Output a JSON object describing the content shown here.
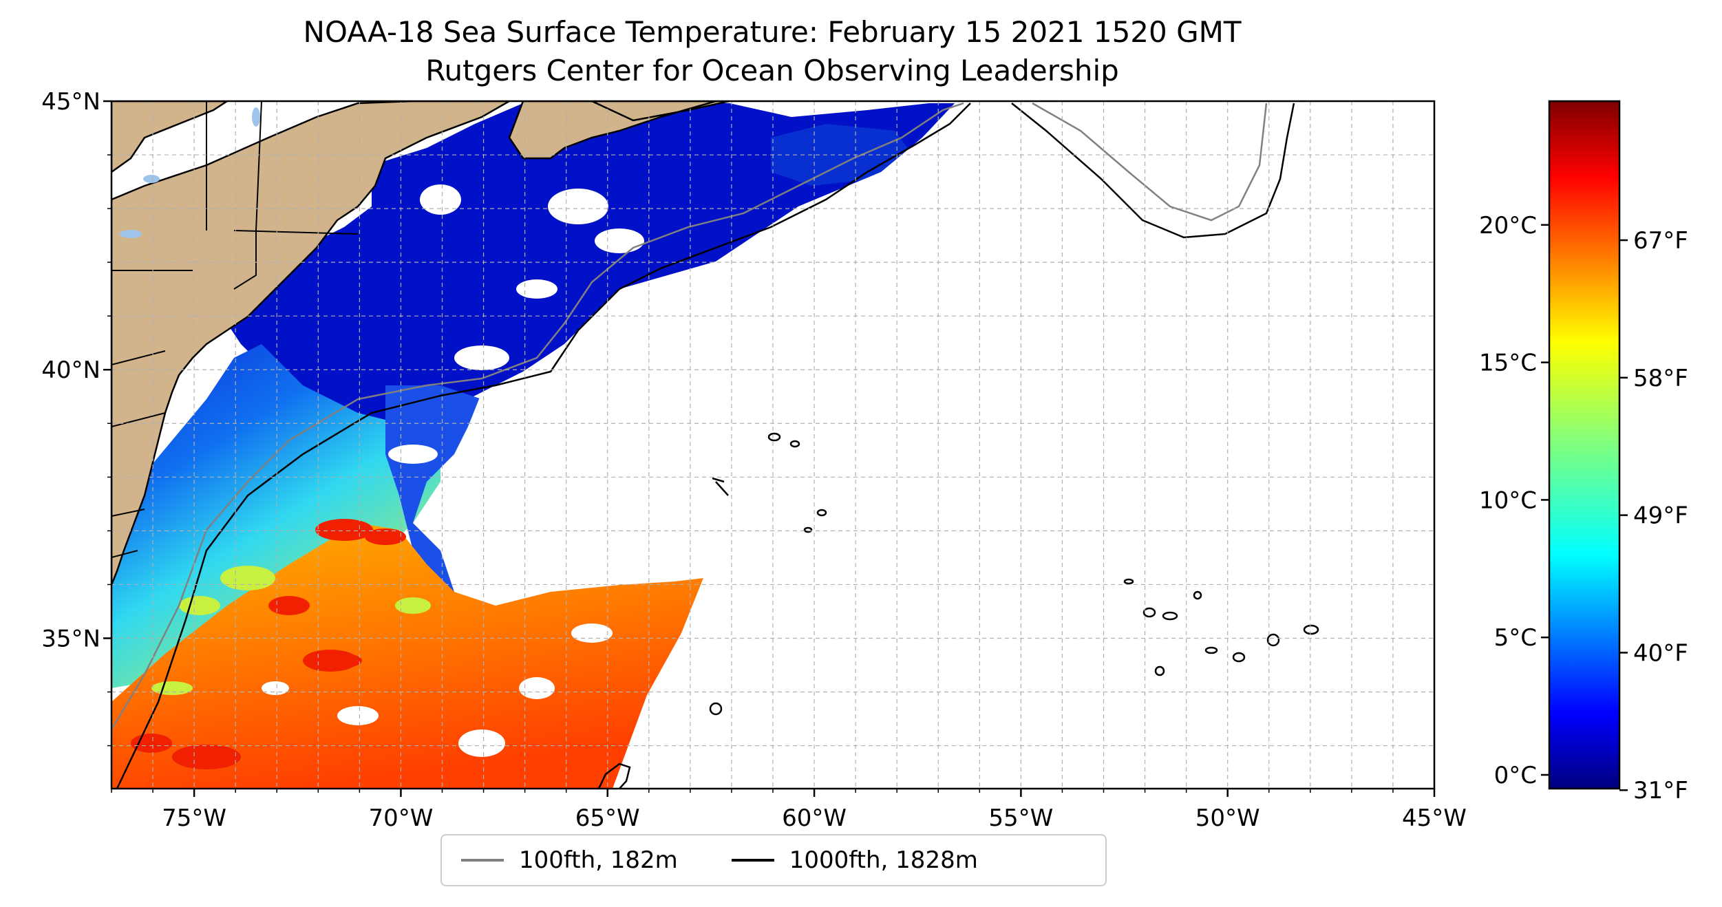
{
  "title": {
    "line1": "NOAA-18 Sea Surface Temperature: February 15 2021 1520 GMT",
    "line2": "Rutgers Center for Ocean Observing Leadership"
  },
  "map": {
    "lon_range": [
      -77,
      -45
    ],
    "lat_range": [
      32.2,
      45
    ],
    "lon_ticks": [
      {
        "value": -75,
        "label": "75°W"
      },
      {
        "value": -70,
        "label": "70°W"
      },
      {
        "value": -65,
        "label": "65°W"
      },
      {
        "value": -60,
        "label": "60°W"
      },
      {
        "value": -55,
        "label": "55°W"
      },
      {
        "value": -50,
        "label": "50°W"
      },
      {
        "value": -45,
        "label": "45°W"
      }
    ],
    "lat_ticks": [
      {
        "value": 45,
        "label": "45°N"
      },
      {
        "value": 40,
        "label": "40°N"
      },
      {
        "value": 35,
        "label": "35°N"
      }
    ],
    "grid": true,
    "colors": {
      "land": "#d2b48c",
      "lakes": "#9ec4ec",
      "isobath_100": "#808080",
      "isobath_1000": "#000000"
    }
  },
  "colorbar": {
    "c_range": [
      -0.5,
      24.5
    ],
    "celsius_ticks": [
      {
        "value": 0,
        "label": "0°C"
      },
      {
        "value": 5,
        "label": "5°C"
      },
      {
        "value": 10,
        "label": "10°C"
      },
      {
        "value": 15,
        "label": "15°C"
      },
      {
        "value": 20,
        "label": "20°C"
      }
    ],
    "fahrenheit_ticks": [
      {
        "value": 31,
        "label": "31°F"
      },
      {
        "value": 40,
        "label": "40°F"
      },
      {
        "value": 49,
        "label": "49°F"
      },
      {
        "value": 58,
        "label": "58°F"
      },
      {
        "value": 67,
        "label": "67°F"
      }
    ],
    "colormap": [
      "#00007f",
      "#0000ff",
      "#007fff",
      "#00ffff",
      "#7fff7f",
      "#ffff00",
      "#ff7f00",
      "#ff0000",
      "#7f0000"
    ]
  },
  "legend": {
    "items": [
      {
        "label": "100fth, 182m",
        "color": "#808080"
      },
      {
        "label": "1000fth, 1828m",
        "color": "#000000"
      }
    ]
  }
}
